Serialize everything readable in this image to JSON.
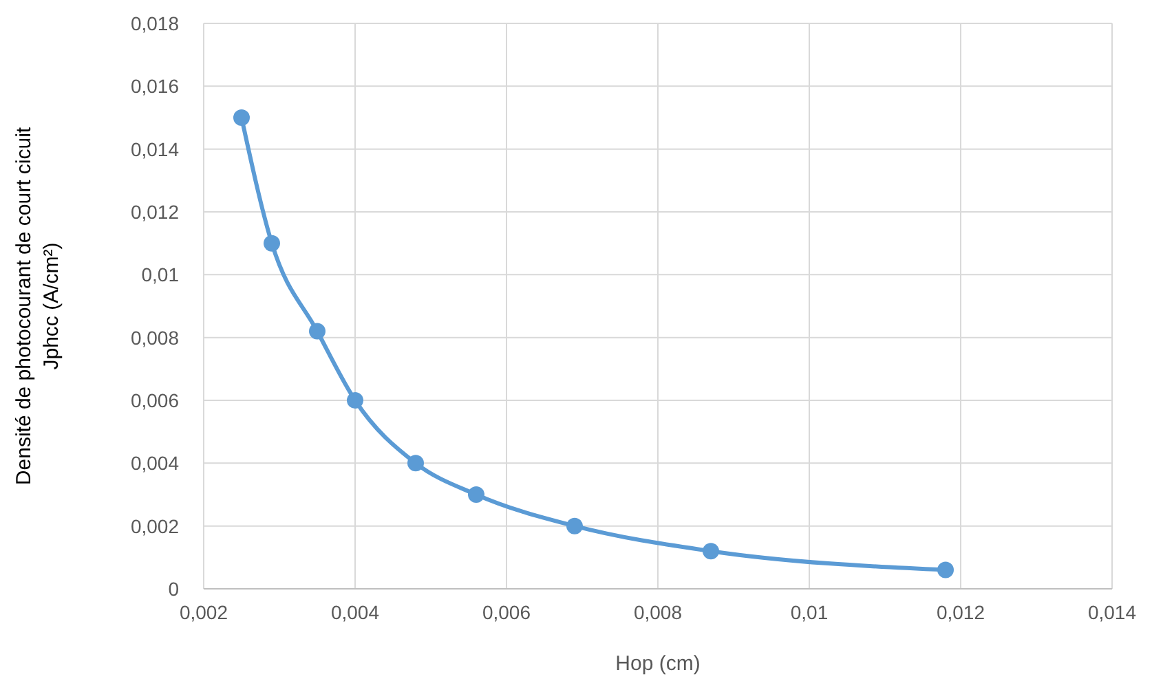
{
  "chart_data": {
    "type": "line",
    "xlabel": "Hop (cm)",
    "ylabel": "Densité de photocourant de court cicuit\nJphcc (A/cm²)",
    "x": [
      0.0025,
      0.0029,
      0.0035,
      0.004,
      0.0048,
      0.0056,
      0.0069,
      0.0087,
      0.0118
    ],
    "series": [
      {
        "color": "#5b9bd5",
        "values": [
          0.015,
          0.011,
          0.0082,
          0.006,
          0.004,
          0.003,
          0.002,
          0.0012,
          0.0006
        ]
      }
    ],
    "xlim": [
      0.002,
      0.014
    ],
    "xticks": [
      {
        "value": 0.002,
        "label": "0,002"
      },
      {
        "value": 0.004,
        "label": "0,004"
      },
      {
        "value": 0.006,
        "label": "0,006"
      },
      {
        "value": 0.008,
        "label": "0,008"
      },
      {
        "value": 0.01,
        "label": "0,01"
      },
      {
        "value": 0.012,
        "label": "0,012"
      },
      {
        "value": 0.014,
        "label": "0,014"
      }
    ],
    "ylim": [
      0,
      0.018
    ],
    "yticks": [
      0,
      {
        "value": 0.002,
        "label": "0,002"
      },
      {
        "value": 0.004,
        "label": "0,004"
      },
      {
        "value": 0.006,
        "label": "0,006"
      },
      {
        "value": 0.008,
        "label": "0,008"
      },
      {
        "value": 0.01,
        "label": "0,01"
      },
      {
        "value": 0.012,
        "label": "0,012"
      },
      {
        "value": 0.014,
        "label": "0,014"
      },
      {
        "value": 0.016,
        "label": "0,016"
      },
      {
        "value": 0.018,
        "label": "0,018"
      }
    ],
    "grid": true,
    "marker": "circle",
    "line_style": "solid"
  }
}
